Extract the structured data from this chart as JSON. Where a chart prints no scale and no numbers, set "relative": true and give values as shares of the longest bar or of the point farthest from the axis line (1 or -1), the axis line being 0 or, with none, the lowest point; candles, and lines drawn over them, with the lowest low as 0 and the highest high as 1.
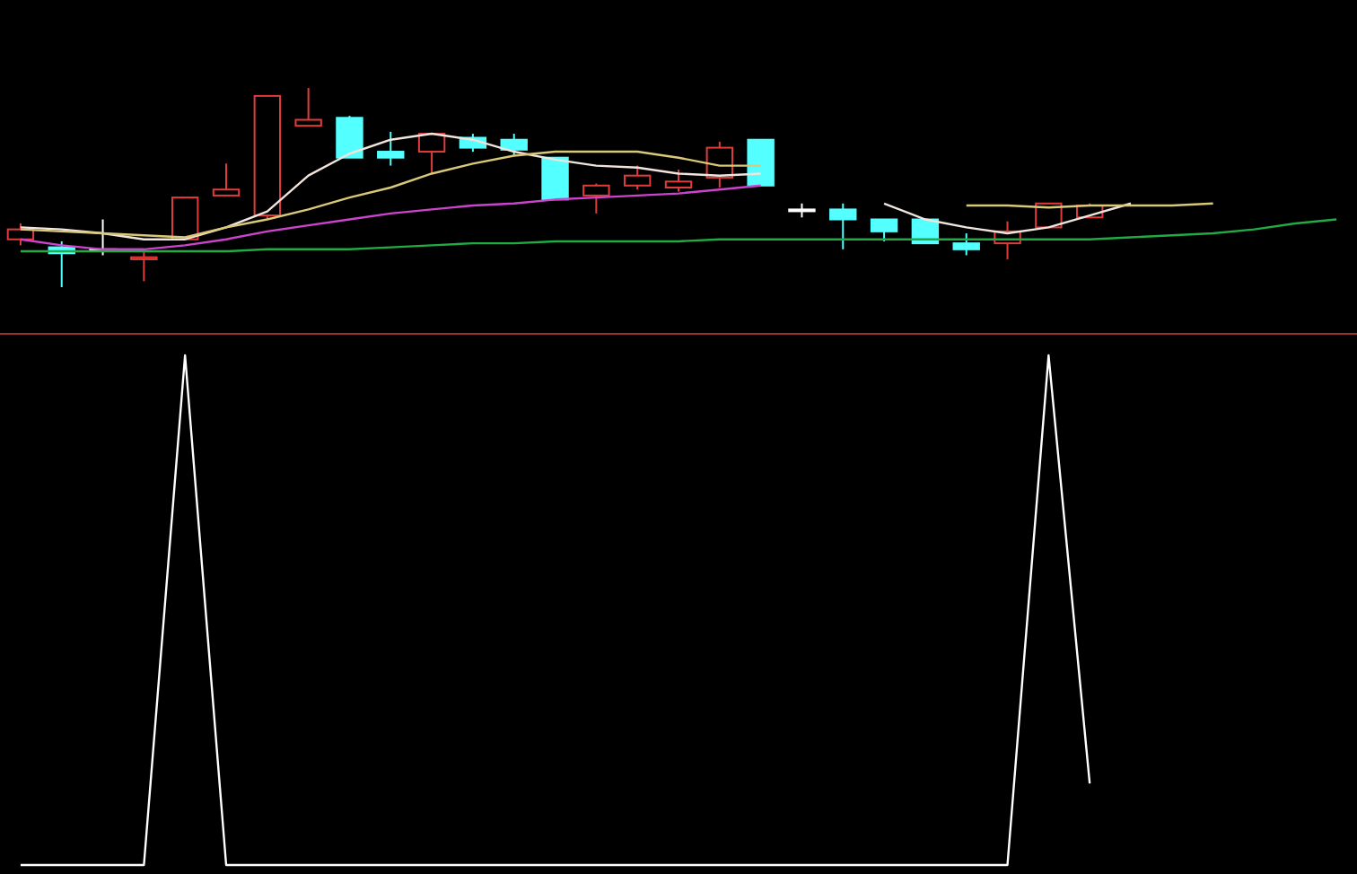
{
  "chart_data": [
    {
      "type": "candlestick",
      "relative": true,
      "categories": [
        null,
        null,
        null,
        null,
        null,
        null,
        null,
        null,
        null,
        null,
        null,
        null,
        null,
        null,
        null,
        null,
        null,
        null,
        null,
        null,
        null,
        null,
        null,
        null,
        null,
        null,
        null,
        null,
        null,
        null,
        null,
        null,
        null
      ],
      "ohlc": [
        [
          0.24,
          0.32,
          0.21,
          0.29
        ],
        [
          0.2,
          0.23,
          0,
          0.17
        ],
        [
          0.19,
          0.34,
          0.16,
          0.19
        ],
        [
          0.14,
          0.19,
          0.03,
          0.15
        ],
        [
          0.24,
          0.45,
          0.24,
          0.45
        ],
        [
          0.46,
          0.62,
          0.46,
          0.49
        ],
        [
          0.36,
          0.96,
          0.34,
          0.96
        ],
        [
          0.81,
          1,
          0.81,
          0.84
        ],
        [
          0.85,
          0.86,
          0.65,
          0.65
        ],
        [
          0.68,
          0.78,
          0.61,
          0.65
        ],
        [
          0.68,
          0.77,
          0.57,
          0.77
        ],
        [
          0.75,
          0.77,
          0.68,
          0.7
        ],
        [
          0.74,
          0.77,
          0.66,
          0.69
        ],
        [
          0.65,
          0.65,
          0.44,
          0.44
        ],
        [
          0.46,
          0.52,
          0.37,
          0.51
        ],
        [
          0.51,
          0.61,
          0.49,
          0.56
        ],
        [
          0.5,
          0.59,
          0.48,
          0.53
        ],
        [
          0.55,
          0.73,
          0.5,
          0.7
        ],
        [
          0.74,
          0.74,
          0.51,
          0.51
        ],
        [
          0.39,
          0.42,
          0.35,
          0.39
        ],
        [
          0.39,
          0.42,
          0.19,
          0.34
        ],
        [
          0.34,
          0.34,
          0.23,
          0.28
        ],
        [
          0.34,
          0.34,
          0.22,
          0.22
        ],
        [
          0.22,
          0.27,
          0.16,
          0.19
        ],
        [
          0.22,
          0.33,
          0.14,
          0.28
        ],
        [
          0.3,
          0.42,
          0.3,
          0.42
        ],
        [
          0.35,
          0.42,
          0.35,
          0.41
        ],
        null,
        null,
        null,
        null,
        null,
        null
      ],
      "colors": [
        "#e03c3c",
        "#54ffff",
        "#ffffff",
        "#e03c3c",
        "#e03c3c",
        "#e03c3c",
        "#e03c3c",
        "#e03c3c",
        "#54ffff",
        "#54ffff",
        "#e03c3c",
        "#54ffff",
        "#54ffff",
        "#54ffff",
        "#e03c3c",
        "#e03c3c",
        "#e03c3c",
        "#e03c3c",
        "#54ffff",
        "#ffffff",
        "#54ffff",
        "#54ffff",
        "#54ffff",
        "#54ffff",
        "#e03c3c",
        "#e03c3c",
        "#e03c3c",
        null,
        null,
        null,
        null,
        null,
        null
      ],
      "series": [
        {
          "type": "line",
          "color": "#f0e4dc",
          "values": [
            0.3,
            0.29,
            0.27,
            0.24,
            0.24,
            0.3,
            0.38,
            0.56,
            0.67,
            0.74,
            0.77,
            0.74,
            0.68,
            0.64,
            0.61,
            0.6,
            0.57,
            0.56,
            0.57,
            null,
            null,
            0.42,
            0.34,
            0.3,
            0.27,
            0.3,
            0.36,
            0.42,
            null,
            null,
            null,
            null,
            null
          ]
        },
        {
          "type": "line",
          "color": "#d8c878",
          "values": [
            0.29,
            0.28,
            0.27,
            0.26,
            0.25,
            0.3,
            0.34,
            0.39,
            0.45,
            0.5,
            0.57,
            0.62,
            0.66,
            0.68,
            0.68,
            0.68,
            0.65,
            0.61,
            0.61,
            null,
            null,
            null,
            null,
            0.41,
            0.41,
            0.4,
            0.41,
            0.41,
            0.41,
            0.42,
            null,
            null,
            null
          ]
        },
        {
          "type": "line",
          "color": "#cc44cc",
          "values": [
            0.24,
            0.21,
            0.19,
            0.19,
            0.21,
            0.24,
            0.28,
            0.31,
            0.34,
            0.37,
            0.39,
            0.41,
            0.42,
            0.44,
            0.45,
            0.46,
            0.47,
            0.49,
            0.51,
            null,
            null,
            null,
            null,
            null,
            null,
            null,
            null,
            null,
            null,
            null,
            null,
            null,
            null
          ]
        },
        {
          "type": "line",
          "color": "#22aa44",
          "values": [
            0.18,
            0.18,
            0.18,
            0.18,
            0.18,
            0.18,
            0.19,
            0.19,
            0.19,
            0.2,
            0.21,
            0.22,
            0.22,
            0.23,
            0.23,
            0.23,
            0.23,
            0.24,
            0.24,
            0.24,
            0.24,
            0.24,
            0.24,
            0.24,
            0.24,
            0.24,
            0.24,
            0.25,
            0.26,
            0.27,
            0.29,
            0.32,
            0.34
          ]
        }
      ]
    },
    {
      "type": "line",
      "relative": true,
      "categories": [
        null,
        null,
        null,
        null,
        null,
        null,
        null,
        null,
        null,
        null,
        null,
        null,
        null,
        null,
        null,
        null,
        null,
        null,
        null,
        null,
        null,
        null,
        null,
        null,
        null,
        null,
        null,
        null,
        null,
        null,
        null,
        null,
        null
      ],
      "series": [
        {
          "color": "#ffffff",
          "values": [
            0,
            0,
            0,
            0,
            1,
            0,
            0,
            0,
            0,
            0,
            0,
            0,
            0,
            0,
            0,
            0,
            0,
            0,
            0,
            0,
            0,
            0,
            0,
            0,
            0,
            1,
            0.16,
            null,
            null,
            null,
            null,
            null,
            null
          ]
        }
      ]
    }
  ]
}
